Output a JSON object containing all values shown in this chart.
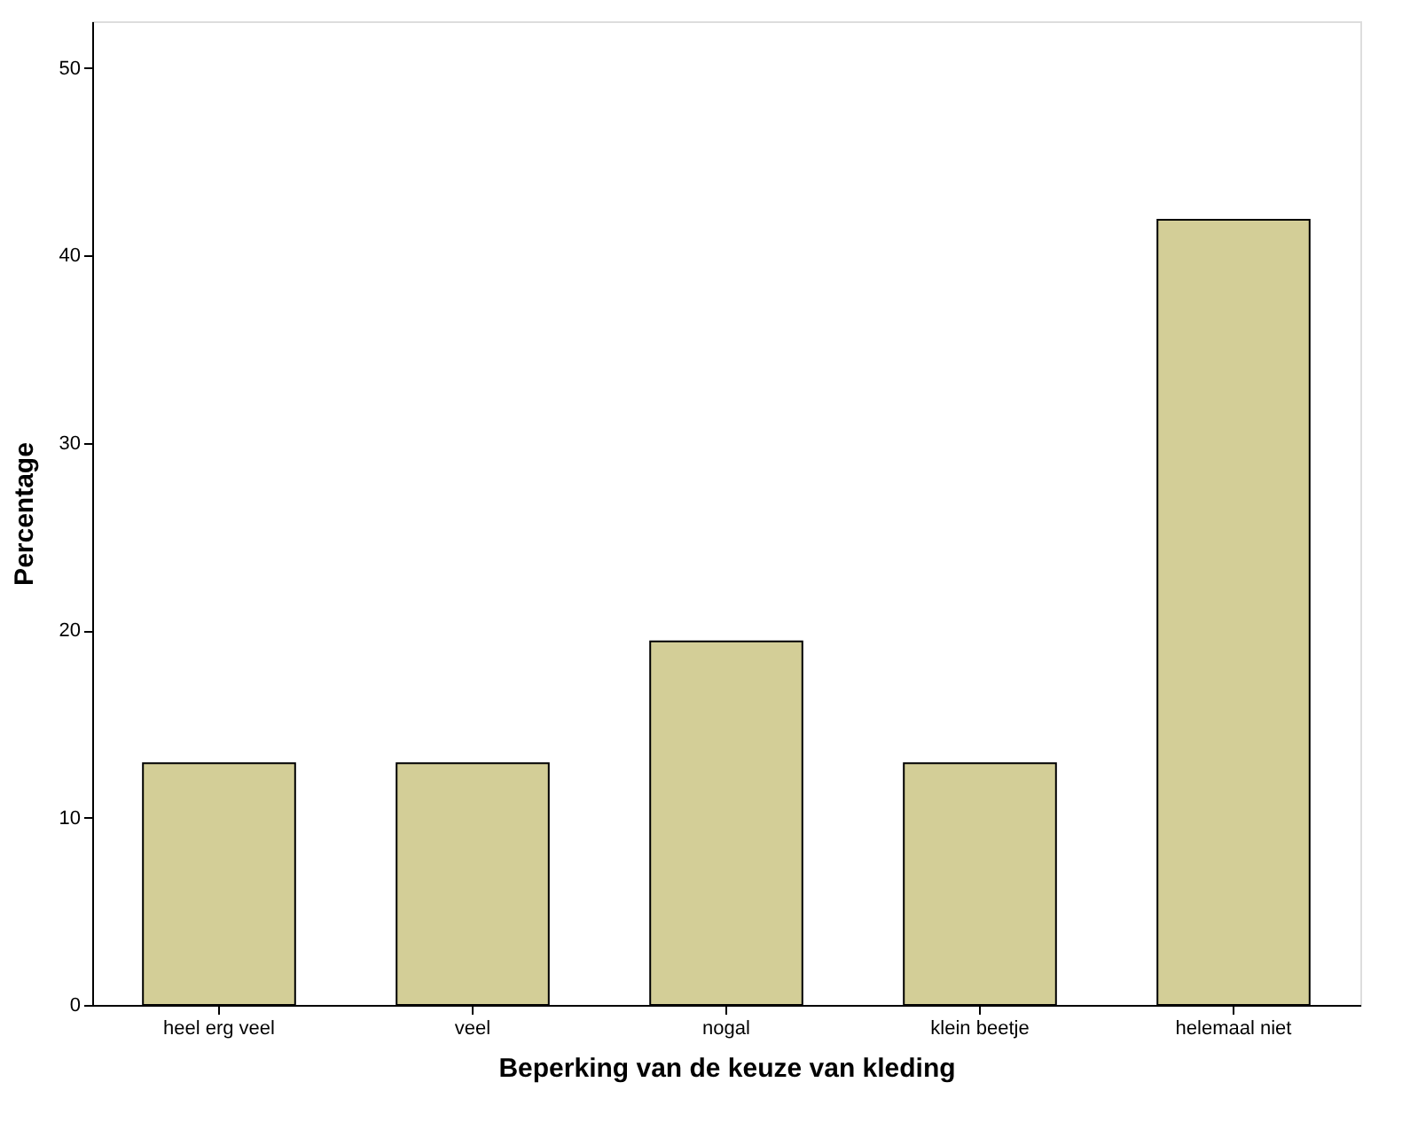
{
  "chart_data": {
    "type": "bar",
    "xlabel": "Beperking van de keuze van kleding",
    "ylabel": "Percentage",
    "categories": [
      "heel erg veel",
      "veel",
      "nogal",
      "klein beetje",
      "helemaal niet"
    ],
    "values": [
      12.9,
      12.9,
      19.4,
      12.9,
      41.9
    ],
    "color": "#d3ce97",
    "ylim": [
      0,
      52.5
    ],
    "yticks": [
      0,
      10,
      20,
      30,
      40,
      50
    ],
    "grid": false
  }
}
